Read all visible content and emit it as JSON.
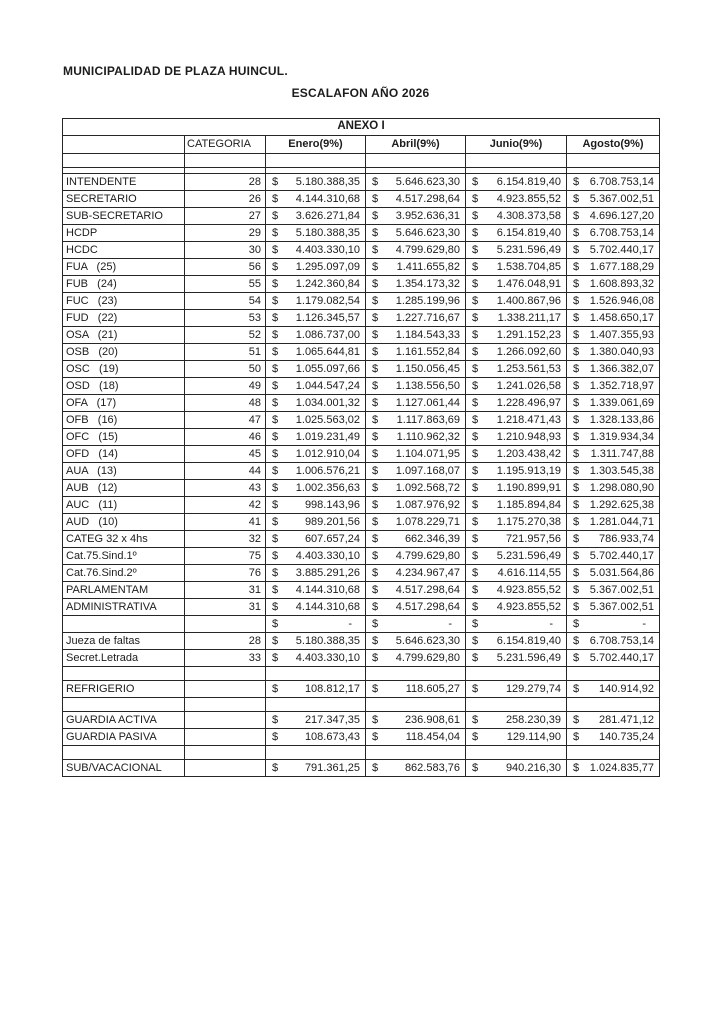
{
  "document": {
    "title": "MUNICIPALIDAD DE PLAZA HUINCUL.",
    "subtitle": "ESCALAFON AÑO 2026"
  },
  "table": {
    "anexo_title": "ANEXO I",
    "columns": [
      "",
      "CATEGORIA",
      "Enero(9%)",
      "Abril(9%)",
      "Junio(9%)",
      "Agosto(9%)"
    ],
    "currency_symbol": "$",
    "rows": [
      {
        "type": "blank",
        "label": "",
        "categoria": ""
      },
      {
        "type": "spacer",
        "label": "",
        "categoria": ""
      },
      {
        "type": "data",
        "label": "INTENDENTE",
        "categoria": "28",
        "values": [
          "5.180.388,35",
          "5.646.623,30",
          "6.154.819,40",
          "6.708.753,14"
        ]
      },
      {
        "type": "data",
        "label": "SECRETARIO",
        "categoria": "26",
        "values": [
          "4.144.310,68",
          "4.517.298,64",
          "4.923.855,52",
          "5.367.002,51"
        ]
      },
      {
        "type": "data",
        "label": "SUB-SECRETARIO",
        "categoria": "27",
        "values": [
          "3.626.271,84",
          "3.952.636,31",
          "4.308.373,58",
          "4.696.127,20"
        ]
      },
      {
        "type": "data",
        "label": "HCDP",
        "categoria": "29",
        "values": [
          "5.180.388,35",
          "5.646.623,30",
          "6.154.819,40",
          "6.708.753,14"
        ]
      },
      {
        "type": "data",
        "label": "HCDC",
        "categoria": "30",
        "values": [
          "4.403.330,10",
          "4.799.629,80",
          "5.231.596,49",
          "5.702.440,17"
        ]
      },
      {
        "type": "data",
        "label": "FUA   (25)",
        "categoria": "56",
        "values": [
          "1.295.097,09",
          "1.411.655,82",
          "1.538.704,85",
          "1.677.188,29"
        ]
      },
      {
        "type": "data",
        "label": "FUB   (24)",
        "categoria": "55",
        "values": [
          "1.242.360,84",
          "1.354.173,32",
          "1.476.048,91",
          "1.608.893,32"
        ]
      },
      {
        "type": "data",
        "label": "FUC   (23)",
        "categoria": "54",
        "values": [
          "1.179.082,54",
          "1.285.199,96",
          "1.400.867,96",
          "1.526.946,08"
        ]
      },
      {
        "type": "data",
        "label": "FUD   (22)",
        "categoria": "53",
        "values": [
          "1.126.345,57",
          "1.227.716,67",
          "1.338.211,17",
          "1.458.650,17"
        ]
      },
      {
        "type": "data",
        "label": "OSA   (21)",
        "categoria": "52",
        "values": [
          "1.086.737,00",
          "1.184.543,33",
          "1.291.152,23",
          "1.407.355,93"
        ]
      },
      {
        "type": "data",
        "label": "OSB   (20)",
        "categoria": "51",
        "values": [
          "1.065.644,81",
          "1.161.552,84",
          "1.266.092,60",
          "1.380.040,93"
        ]
      },
      {
        "type": "data",
        "label": "OSC   (19)",
        "categoria": "50",
        "values": [
          "1.055.097,66",
          "1.150.056,45",
          "1.253.561,53",
          "1.366.382,07"
        ]
      },
      {
        "type": "data",
        "label": "OSD   (18)",
        "categoria": "49",
        "values": [
          "1.044.547,24",
          "1.138.556,50",
          "1.241.026,58",
          "1.352.718,97"
        ]
      },
      {
        "type": "data",
        "label": "OFA   (17)",
        "categoria": "48",
        "values": [
          "1.034.001,32",
          "1.127.061,44",
          "1.228.496,97",
          "1.339.061,69"
        ]
      },
      {
        "type": "data",
        "label": "OFB   (16)",
        "categoria": "47",
        "values": [
          "1.025.563,02",
          "1.117.863,69",
          "1.218.471,43",
          "1.328.133,86"
        ]
      },
      {
        "type": "data",
        "label": "OFC   (15)",
        "categoria": "46",
        "values": [
          "1.019.231,49",
          "1.110.962,32",
          "1.210.948,93",
          "1.319.934,34"
        ]
      },
      {
        "type": "data",
        "label": "OFD   (14)",
        "categoria": "45",
        "values": [
          "1.012.910,04",
          "1.104.071,95",
          "1.203.438,42",
          "1.311.747,88"
        ]
      },
      {
        "type": "data",
        "label": "AUA   (13)",
        "categoria": "44",
        "values": [
          "1.006.576,21",
          "1.097.168,07",
          "1.195.913,19",
          "1.303.545,38"
        ]
      },
      {
        "type": "data",
        "label": "AUB   (12)",
        "categoria": "43",
        "values": [
          "1.002.356,63",
          "1.092.568,72",
          "1.190.899,91",
          "1.298.080,90"
        ]
      },
      {
        "type": "data",
        "label": "AUC   (11)",
        "categoria": "42",
        "values": [
          "998.143,96",
          "1.087.976,92",
          "1.185.894,84",
          "1.292.625,38"
        ]
      },
      {
        "type": "data",
        "label": "AUD   (10)",
        "categoria": "41",
        "values": [
          "989.201,56",
          "1.078.229,71",
          "1.175.270,38",
          "1.281.044,71"
        ]
      },
      {
        "type": "data",
        "label": "CATEG 32 x 4hs",
        "categoria": "32",
        "values": [
          "607.657,24",
          "662.346,39",
          "721.957,56",
          "786.933,74"
        ]
      },
      {
        "type": "data",
        "label": "Cat.75.Sind.1º",
        "categoria": "75",
        "values": [
          "4.403.330,10",
          "4.799.629,80",
          "5.231.596,49",
          "5.702.440,17"
        ]
      },
      {
        "type": "data",
        "label": "Cat.76.Sind.2º",
        "categoria": "76",
        "values": [
          "3.885.291,26",
          "4.234.967,47",
          "4.616.114,55",
          "5.031.564,86"
        ]
      },
      {
        "type": "data",
        "label": "PARLAMENTAM",
        "categoria": "31",
        "values": [
          "4.144.310,68",
          "4.517.298,64",
          "4.923.855,52",
          "5.367.002,51"
        ]
      },
      {
        "type": "data",
        "label": "ADMINISTRATIVA",
        "categoria": "31",
        "values": [
          "4.144.310,68",
          "4.517.298,64",
          "4.923.855,52",
          "5.367.002,51"
        ]
      },
      {
        "type": "dash",
        "label": "",
        "categoria": "",
        "values": [
          "-",
          "-",
          "-",
          "-"
        ]
      },
      {
        "type": "data",
        "label": "Jueza de faltas",
        "categoria": "28",
        "values": [
          "5.180.388,35",
          "5.646.623,30",
          "6.154.819,40",
          "6.708.753,14"
        ]
      },
      {
        "type": "data",
        "label": "Secret.Letrada",
        "categoria": "33",
        "values": [
          "4.403.330,10",
          "4.799.629,80",
          "5.231.596,49",
          "5.702.440,17"
        ]
      },
      {
        "type": "blank",
        "label": "",
        "categoria": ""
      },
      {
        "type": "data",
        "label": "REFRIGERIO",
        "categoria": "",
        "values": [
          "108.812,17",
          "118.605,27",
          "129.279,74",
          "140.914,92"
        ]
      },
      {
        "type": "blank",
        "label": "",
        "categoria": ""
      },
      {
        "type": "data",
        "label": "GUARDIA ACTIVA",
        "categoria": "",
        "values": [
          "217.347,35",
          "236.908,61",
          "258.230,39",
          "281.471,12"
        ]
      },
      {
        "type": "data",
        "label": "GUARDIA PASIVA",
        "categoria": "",
        "values": [
          "108.673,43",
          "118.454,04",
          "129.114,90",
          "140.735,24"
        ]
      },
      {
        "type": "blank",
        "label": "",
        "categoria": ""
      },
      {
        "type": "data",
        "label": "SUB/VACACIONAL",
        "categoria": "",
        "values": [
          "791.361,25",
          "862.583,76",
          "940.216,30",
          "1.024.835,77"
        ]
      }
    ]
  }
}
